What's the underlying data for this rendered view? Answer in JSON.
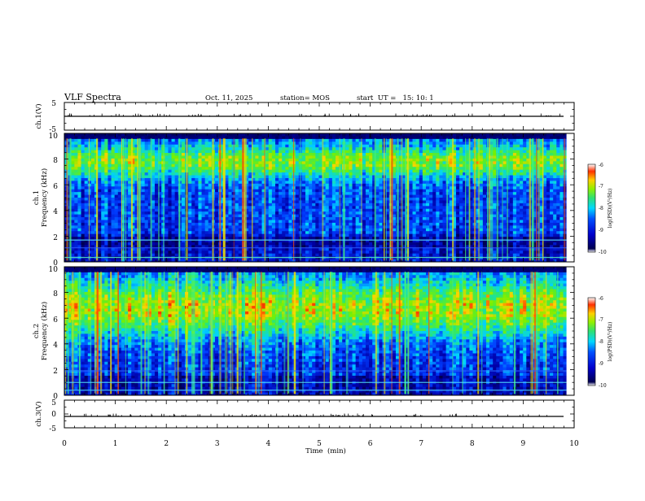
{
  "header": {
    "title": "VLF Spectra",
    "date": "Oct. 11, 2025",
    "station": "station= MOS",
    "start": "start  UT =   15: 10: 1"
  },
  "chart_data": [
    {
      "type": "line",
      "name": "ch1-voltage",
      "ylabel": "ch.1(V)",
      "ylim": [
        -5,
        5
      ],
      "yticks": [
        "5",
        "-5"
      ],
      "xlim": [
        0,
        10
      ],
      "series": [
        {
          "name": "ch.1",
          "level": -0.3
        }
      ]
    },
    {
      "type": "heatmap",
      "name": "ch1-spectrogram",
      "ylabel_line1": "ch.1",
      "ylabel_line2": "Frequency (kHz)",
      "xlim": [
        0,
        9.85
      ],
      "ylim": [
        0,
        10
      ],
      "yticks": [
        "0",
        "2",
        "4",
        "6",
        "8",
        "10"
      ],
      "band_peak_khz": 7.8,
      "colorbar": {
        "label": "log(PSD)(V²/Hz)",
        "ticks": [
          "-6",
          "-7",
          "-8",
          "-9",
          "-10"
        ],
        "range": [
          -10,
          -6
        ]
      }
    },
    {
      "type": "heatmap",
      "name": "ch2-spectrogram",
      "ylabel_line1": "ch.2",
      "ylabel_line2": "Frequency (kHz)",
      "xlim": [
        0,
        9.85
      ],
      "ylim": [
        0,
        10
      ],
      "yticks": [
        "0",
        "2",
        "4",
        "6",
        "8",
        "10"
      ],
      "band_peak_khz": 6.8,
      "colorbar": {
        "label": "log(PSD)(V²/Hz)",
        "ticks": [
          "-6",
          "-7",
          "-8",
          "-9",
          "-10"
        ],
        "range": [
          -10,
          -6
        ]
      }
    },
    {
      "type": "line",
      "name": "ch3-voltage",
      "ylabel": "ch.3(V)",
      "ylim": [
        -5,
        5
      ],
      "yticks": [
        "5",
        "0",
        "-5"
      ],
      "xlim": [
        0,
        10
      ],
      "xlabel": "Time  (min)",
      "xticks": [
        "0",
        "1",
        "2",
        "3",
        "4",
        "5",
        "6",
        "7",
        "8",
        "9",
        "10"
      ],
      "series": [
        {
          "name": "ch.3",
          "level": -0.8
        }
      ]
    }
  ]
}
